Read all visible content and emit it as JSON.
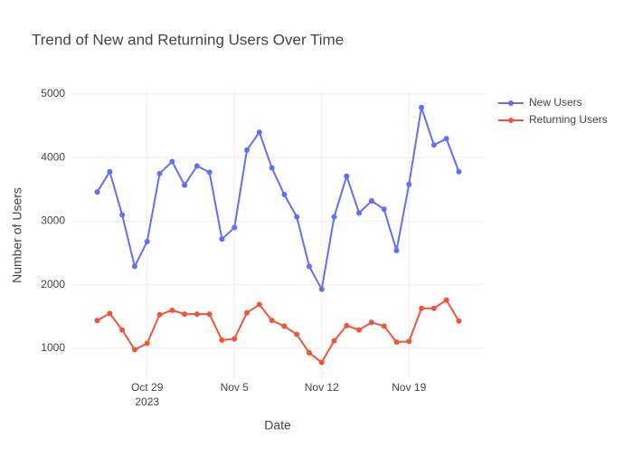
{
  "chart_data": {
    "type": "line",
    "title": "Trend of New and Returning Users Over Time",
    "x_label": "Date",
    "y_label": "Number of Users",
    "x": [
      "2023-10-25",
      "2023-10-26",
      "2023-10-27",
      "2023-10-28",
      "2023-10-29",
      "2023-10-30",
      "2023-10-31",
      "2023-11-01",
      "2023-11-02",
      "2023-11-03",
      "2023-11-04",
      "2023-11-05",
      "2023-11-06",
      "2023-11-07",
      "2023-11-08",
      "2023-11-09",
      "2023-11-10",
      "2023-11-11",
      "2023-11-12",
      "2023-11-13",
      "2023-11-14",
      "2023-11-15",
      "2023-11-16",
      "2023-11-17",
      "2023-11-18",
      "2023-11-19",
      "2023-11-20",
      "2023-11-21",
      "2023-11-22",
      "2023-11-23"
    ],
    "series": [
      {
        "name": "New Users",
        "color": "#636efa",
        "values": [
          3460,
          3780,
          3100,
          2290,
          2680,
          3750,
          3940,
          3570,
          3870,
          3770,
          2720,
          2900,
          4120,
          4400,
          3840,
          3420,
          3070,
          2290,
          1930,
          3070,
          3710,
          3130,
          3320,
          3190,
          2540,
          3580,
          4790,
          4200,
          4300,
          3780
        ]
      },
      {
        "name": "Returning Users",
        "color": "#ef553b",
        "values": [
          1440,
          1550,
          1290,
          980,
          1080,
          1530,
          1600,
          1540,
          1540,
          1540,
          1130,
          1150,
          1560,
          1690,
          1440,
          1350,
          1220,
          930,
          780,
          1120,
          1360,
          1290,
          1410,
          1350,
          1100,
          1110,
          1630,
          1630,
          1760,
          1430
        ]
      }
    ],
    "xlim": [
      "2023-10-23",
      "2023-11-25"
    ],
    "xticks": [
      {
        "value": "2023-10-29",
        "label": "Oct 29"
      },
      {
        "value": "2023-11-05",
        "label": "Nov 5"
      },
      {
        "value": "2023-11-12",
        "label": "Nov 12"
      },
      {
        "value": "2023-11-19",
        "label": "Nov 19"
      }
    ],
    "x_year": "2023",
    "ylim": [
      502,
      5057
    ],
    "yticks": [
      1000,
      2000,
      3000,
      4000,
      5000
    ],
    "grid": true,
    "legend": "right"
  }
}
